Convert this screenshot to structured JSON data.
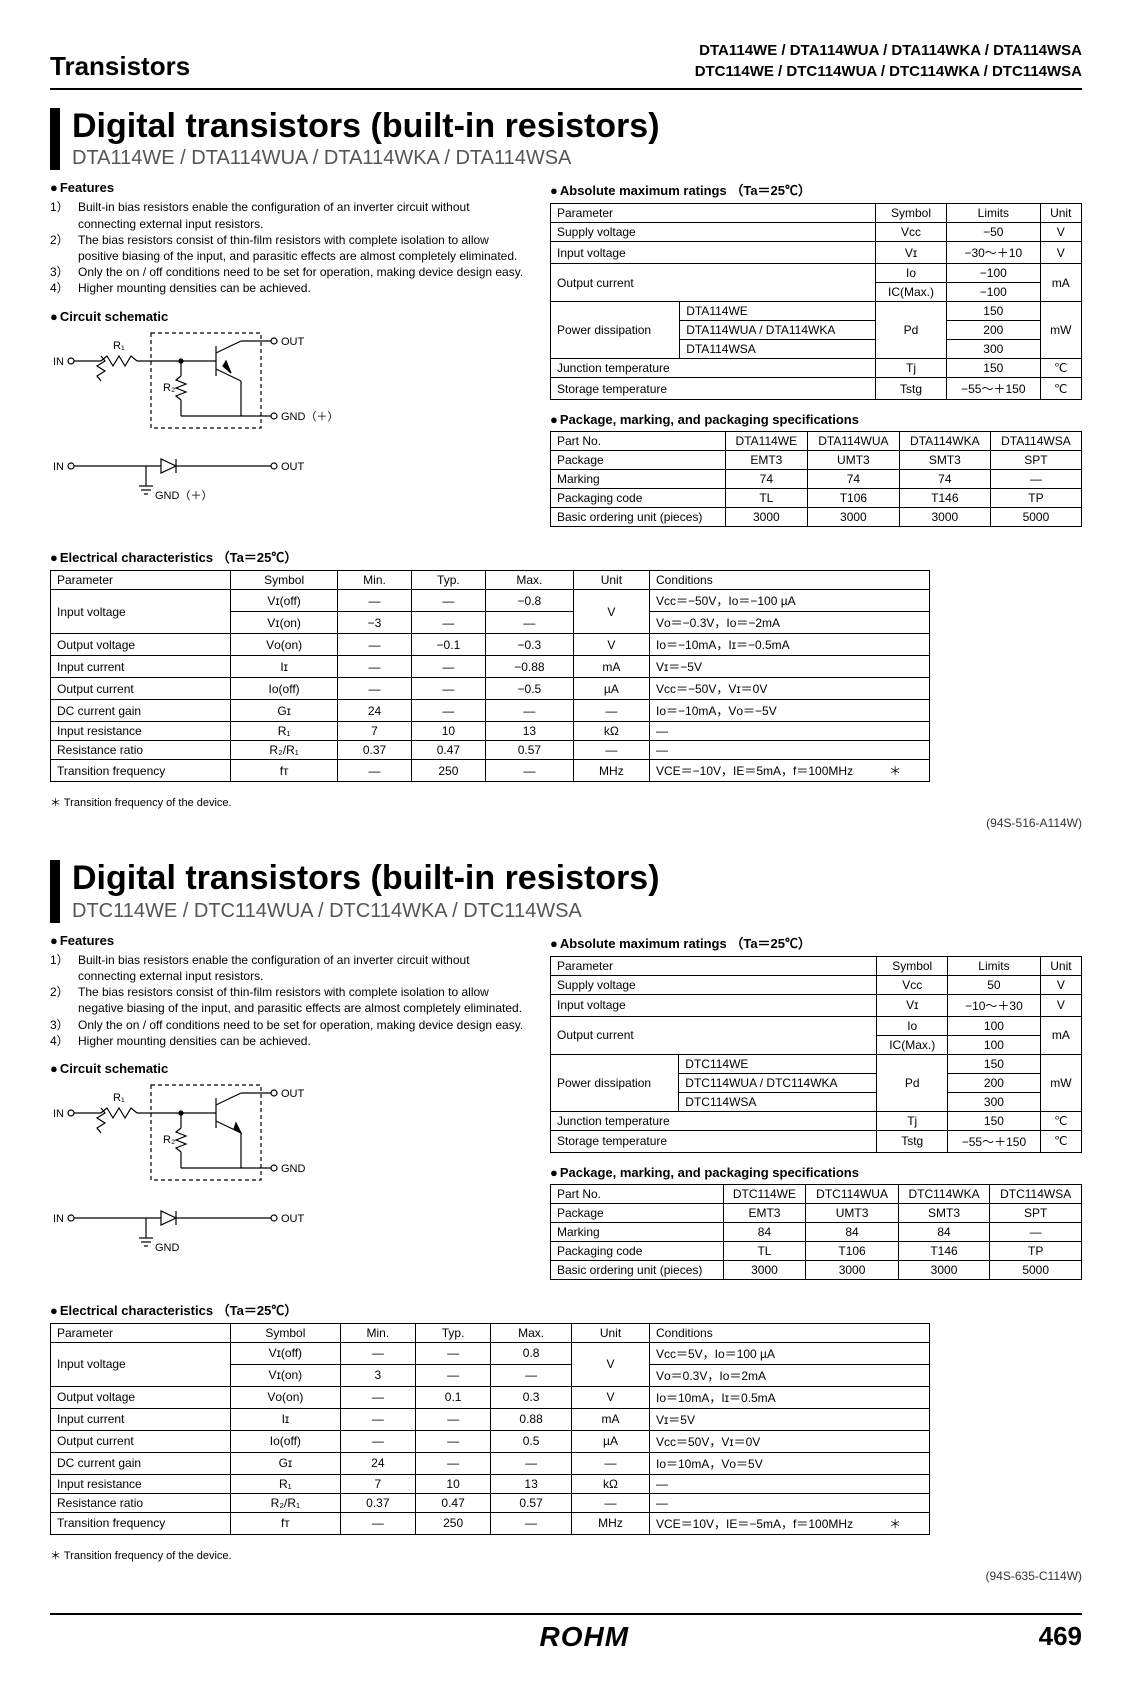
{
  "header": {
    "left": "Transistors",
    "right1": "DTA114WE / DTA114WUA / DTA114WKA / DTA114WSA",
    "right2": "DTC114WE / DTC114WUA / DTC114WKA / DTC114WSA"
  },
  "sections": [
    {
      "title": "Digital transistors (built-in resistors)",
      "subtitle": "DTA114WE / DTA114WUA / DTA114WKA / DTA114WSA",
      "features_head": "Features",
      "features": [
        {
          "n": "1）",
          "t": "Built-in bias resistors enable the configuration of an inverter circuit without connecting external input resistors."
        },
        {
          "n": "2）",
          "t": "The bias resistors consist of thin-film resistors with complete isolation to allow positive biasing of the input, and parasitic effects are almost completely eliminated."
        },
        {
          "n": "3）",
          "t": "Only the on / off conditions need to be set for operation, making device design easy."
        },
        {
          "n": "4）",
          "t": "Higher mounting densities can be achieved."
        }
      ],
      "schematic_head": "Circuit schematic",
      "schematic_labels": {
        "in": "IN",
        "out": "OUT",
        "gnd": "GND（＋）",
        "r1": "R₁",
        "r2": "R₂"
      },
      "abs_head": "Absolute maximum ratings （Ta＝25℃）",
      "abs_table": {
        "headers": [
          "Parameter",
          "Symbol",
          "Limits",
          "Unit"
        ],
        "rows": [
          [
            "Supply voltage",
            "Vcc",
            "−50",
            "V"
          ],
          [
            "Input voltage",
            "Vɪ",
            "−30～＋10",
            "V"
          ]
        ],
        "out_current": {
          "label": "Output current",
          "r1": [
            "Iᴏ",
            "−100"
          ],
          "r2": [
            "IC(Max.)",
            "−100"
          ],
          "unit": "mA"
        },
        "pd": {
          "label": "Power dissipation",
          "rows": [
            [
              "DTA114WE",
              "150"
            ],
            [
              "DTA114WUA / DTA114WKA",
              "200"
            ],
            [
              "DTA114WSA",
              "300"
            ]
          ],
          "sym": "Pd",
          "unit": "mW"
        },
        "tail": [
          [
            "Junction temperature",
            "Tj",
            "150",
            "℃"
          ],
          [
            "Storage temperature",
            "Tstg",
            "−55～＋150",
            "℃"
          ]
        ]
      },
      "pkg_head": "Package, marking, and packaging specifications",
      "pkg_table": {
        "headers": [
          "Part No.",
          "DTA114WE",
          "DTA114WUA",
          "DTA114WKA",
          "DTA114WSA"
        ],
        "rows": [
          [
            "Package",
            "EMT3",
            "UMT3",
            "SMT3",
            "SPT"
          ],
          [
            "Marking",
            "74",
            "74",
            "74",
            "—"
          ],
          [
            "Packaging code",
            "TL",
            "T106",
            "T146",
            "TP"
          ],
          [
            "Basic ordering unit (pieces)",
            "3000",
            "3000",
            "3000",
            "5000"
          ]
        ]
      },
      "elec_head": "Electrical characteristics （Ta＝25℃）",
      "elec_table": {
        "headers": [
          "Parameter",
          "Symbol",
          "Min.",
          "Typ.",
          "Max.",
          "Unit",
          "Conditions"
        ],
        "input_voltage": {
          "label": "Input voltage",
          "r1": [
            "Vɪ(off)",
            "—",
            "—",
            "−0.8",
            "Vcc＝−50V，Iᴏ＝−100 µA"
          ],
          "r2": [
            "Vɪ(on)",
            "−3",
            "—",
            "—",
            "Vᴏ＝−0.3V，Iᴏ＝−2mA"
          ],
          "unit": "V"
        },
        "rows": [
          [
            "Output voltage",
            "Vᴏ(on)",
            "—",
            "−0.1",
            "−0.3",
            "V",
            "Iᴏ＝−10mA，Iɪ＝−0.5mA"
          ],
          [
            "Input current",
            "Iɪ",
            "—",
            "—",
            "−0.88",
            "mA",
            "Vɪ＝−5V"
          ],
          [
            "Output current",
            "Iᴏ(off)",
            "—",
            "—",
            "−0.5",
            "µA",
            "Vcc＝−50V，Vɪ＝0V"
          ],
          [
            "DC current gain",
            "Gɪ",
            "24",
            "—",
            "—",
            "—",
            "Iᴏ＝−10mA，Vᴏ＝−5V"
          ],
          [
            "Input resistance",
            "R₁",
            "7",
            "10",
            "13",
            "kΩ",
            "—"
          ],
          [
            "Resistance ratio",
            "R₂/R₁",
            "0.37",
            "0.47",
            "0.57",
            "—",
            "—"
          ],
          [
            "Transition frequency",
            "fᴛ",
            "—",
            "250",
            "—",
            "MHz",
            "VCE＝−10V，IE＝5mA，f＝100MHz　　　＊"
          ]
        ]
      },
      "footnote": "＊ Transition frequency of the device.",
      "code_ref": "(94S-516-A114W)"
    },
    {
      "title": "Digital transistors (built-in resistors)",
      "subtitle": "DTC114WE / DTC114WUA / DTC114WKA / DTC114WSA",
      "features_head": "Features",
      "features": [
        {
          "n": "1）",
          "t": "Built-in bias resistors enable the configuration of an inverter circuit without connecting external input resistors."
        },
        {
          "n": "2）",
          "t": "The bias resistors consist of thin-film resistors with complete isolation to allow negative biasing of the input, and parasitic effects are almost completely eliminated."
        },
        {
          "n": "3）",
          "t": "Only the on / off conditions need to be set for operation, making device design easy."
        },
        {
          "n": "4）",
          "t": "Higher mounting densities can be achieved."
        }
      ],
      "schematic_head": "Circuit schematic",
      "schematic_labels": {
        "in": "IN",
        "out": "OUT",
        "gnd": "GND",
        "r1": "R₁",
        "r2": "R₂"
      },
      "abs_head": "Absolute maximum ratings （Ta＝25℃）",
      "abs_table": {
        "headers": [
          "Parameter",
          "Symbol",
          "Limits",
          "Unit"
        ],
        "rows": [
          [
            "Supply voltage",
            "Vcc",
            "50",
            "V"
          ],
          [
            "Input voltage",
            "Vɪ",
            "−10～＋30",
            "V"
          ]
        ],
        "out_current": {
          "label": "Output current",
          "r1": [
            "Iᴏ",
            "100"
          ],
          "r2": [
            "IC(Max.)",
            "100"
          ],
          "unit": "mA"
        },
        "pd": {
          "label": "Power dissipation",
          "rows": [
            [
              "DTC114WE",
              "150"
            ],
            [
              "DTC114WUA / DTC114WKA",
              "200"
            ],
            [
              "DTC114WSA",
              "300"
            ]
          ],
          "sym": "Pd",
          "unit": "mW"
        },
        "tail": [
          [
            "Junction temperature",
            "Tj",
            "150",
            "℃"
          ],
          [
            "Storage temperature",
            "Tstg",
            "−55～＋150",
            "℃"
          ]
        ]
      },
      "pkg_head": "Package, marking, and packaging specifications",
      "pkg_table": {
        "headers": [
          "Part No.",
          "DTC114WE",
          "DTC114WUA",
          "DTC114WKA",
          "DTC114WSA"
        ],
        "rows": [
          [
            "Package",
            "EMT3",
            "UMT3",
            "SMT3",
            "SPT"
          ],
          [
            "Marking",
            "84",
            "84",
            "84",
            "—"
          ],
          [
            "Packaging code",
            "TL",
            "T106",
            "T146",
            "TP"
          ],
          [
            "Basic ordering unit (pieces)",
            "3000",
            "3000",
            "3000",
            "5000"
          ]
        ]
      },
      "elec_head": "Electrical characteristics （Ta＝25℃）",
      "elec_table": {
        "headers": [
          "Parameter",
          "Symbol",
          "Min.",
          "Typ.",
          "Max.",
          "Unit",
          "Conditions"
        ],
        "input_voltage": {
          "label": "Input voltage",
          "r1": [
            "Vɪ(off)",
            "—",
            "—",
            "0.8",
            "Vcc＝5V，Iᴏ＝100 µA"
          ],
          "r2": [
            "Vɪ(on)",
            "3",
            "—",
            "—",
            "Vᴏ＝0.3V，Iᴏ＝2mA"
          ],
          "unit": "V"
        },
        "rows": [
          [
            "Output voltage",
            "Vᴏ(on)",
            "—",
            "0.1",
            "0.3",
            "V",
            "Iᴏ＝10mA，Iɪ＝0.5mA"
          ],
          [
            "Input current",
            "Iɪ",
            "—",
            "—",
            "0.88",
            "mA",
            "Vɪ＝5V"
          ],
          [
            "Output current",
            "Iᴏ(off)",
            "—",
            "—",
            "0.5",
            "µA",
            "Vcc＝50V，Vɪ＝0V"
          ],
          [
            "DC current gain",
            "Gɪ",
            "24",
            "—",
            "—",
            "—",
            "Iᴏ＝10mA，Vᴏ＝5V"
          ],
          [
            "Input resistance",
            "R₁",
            "7",
            "10",
            "13",
            "kΩ",
            "—"
          ],
          [
            "Resistance ratio",
            "R₂/R₁",
            "0.37",
            "0.47",
            "0.57",
            "—",
            "—"
          ],
          [
            "Transition frequency",
            "fᴛ",
            "—",
            "250",
            "—",
            "MHz",
            "VCE＝10V，IE＝−5mA，f＝100MHz　　　＊"
          ]
        ]
      },
      "footnote": "＊ Transition frequency of the device.",
      "code_ref": "(94S-635-C114W)"
    }
  ],
  "footer": {
    "logo": "ROHM",
    "page": "469"
  }
}
